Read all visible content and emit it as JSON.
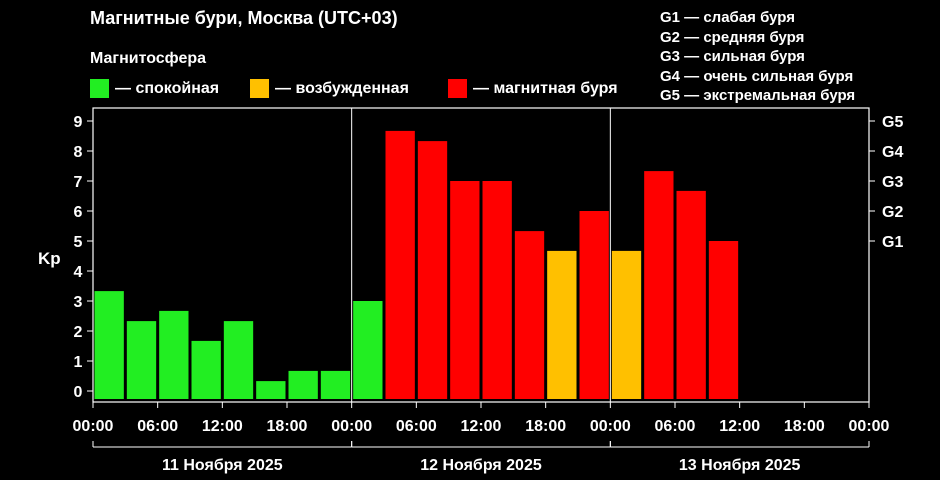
{
  "title": "Магнитные бури, Москва (UTC+03)",
  "subtitle": "Магнитосфера",
  "legend": [
    {
      "label": "— спокойная",
      "color": "#22ee22"
    },
    {
      "label": "— возбужденная",
      "color": "#ffc000"
    },
    {
      "label": "— магнитная буря",
      "color": "#ff0000"
    }
  ],
  "g_legend": [
    "G1 — слабая буря",
    "G2 — средняя буря",
    "G3 — сильная буря",
    "G4 — очень сильная буря",
    "G5 — экстремальная буря"
  ],
  "chart_data": {
    "type": "bar",
    "ylabel": "Kp",
    "ylim": [
      0,
      9
    ],
    "yticks": [
      0,
      1,
      2,
      3,
      4,
      5,
      6,
      7,
      8,
      9
    ],
    "right_ticks": [
      {
        "label": "G1",
        "value": 5
      },
      {
        "label": "G2",
        "value": 6
      },
      {
        "label": "G3",
        "value": 7
      },
      {
        "label": "G4",
        "value": 8
      },
      {
        "label": "G5",
        "value": 9
      }
    ],
    "x_tick_labels": [
      "00:00",
      "06:00",
      "12:00",
      "18:00",
      "00:00",
      "06:00",
      "12:00",
      "18:00",
      "00:00",
      "06:00",
      "12:00",
      "18:00",
      "00:00"
    ],
    "days": [
      "11 Ноября 2025",
      "12 Ноября 2025",
      "13 Ноября 2025"
    ],
    "slots_per_day": 8,
    "values": [
      3.33,
      2.33,
      2.67,
      1.67,
      2.33,
      0.33,
      0.67,
      0.67,
      3.0,
      8.67,
      8.33,
      7.0,
      7.0,
      5.33,
      4.67,
      6.0,
      4.67,
      7.33,
      6.67,
      5.0
    ],
    "colors": {
      "quiet": "#22ee22",
      "active": "#ffc000",
      "storm": "#ff0000"
    },
    "grid": false
  }
}
